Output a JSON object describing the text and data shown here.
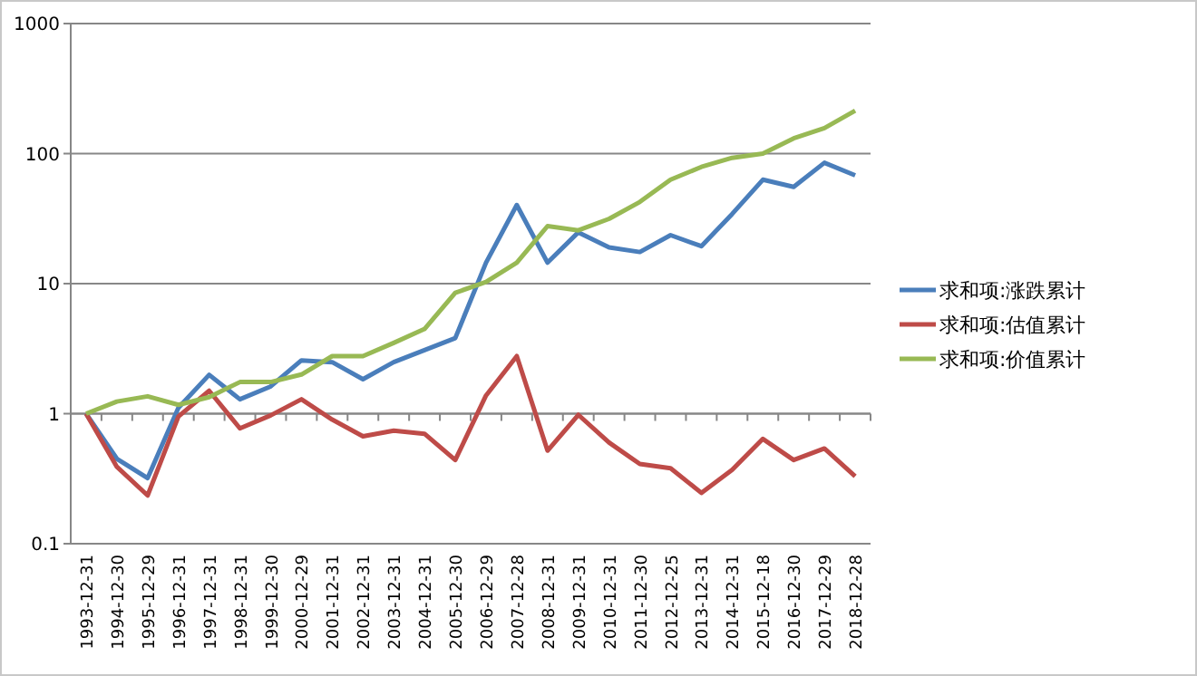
{
  "chart_data": {
    "type": "line",
    "log": "y",
    "ylim": [
      0.1,
      1000
    ],
    "yticks": [
      0.1,
      1,
      10,
      100,
      1000
    ],
    "grid": "y",
    "legend": "right",
    "categories": [
      "1993-12-31",
      "1994-12-30",
      "1995-12-29",
      "1996-12-31",
      "1997-12-31",
      "1998-12-31",
      "1999-12-30",
      "2000-12-29",
      "2001-12-31",
      "2002-12-31",
      "2003-12-31",
      "2004-12-31",
      "2005-12-30",
      "2006-12-29",
      "2007-12-28",
      "2008-12-31",
      "2009-12-31",
      "2010-12-31",
      "2011-12-30",
      "2012-12-25",
      "2013-12-31",
      "2014-12-31",
      "2015-12-18",
      "2016-12-30",
      "2017-12-29",
      "2018-12-28"
    ],
    "series": [
      {
        "name": "求和项:涨跌累计",
        "color": "#4a7ebb",
        "values": [
          1,
          0.45,
          0.32,
          1.11,
          1.99,
          1.29,
          1.62,
          2.57,
          2.49,
          1.84,
          2.49,
          3.08,
          3.81,
          14.5,
          40.2,
          14.5,
          24.8,
          19,
          17.5,
          23.6,
          19.4,
          34.3,
          63,
          55.5,
          85,
          68
        ]
      },
      {
        "name": "求和项:估值累计",
        "color": "#be4b48",
        "values": [
          1,
          0.39,
          0.235,
          0.95,
          1.5,
          0.77,
          0.97,
          1.29,
          0.9,
          0.67,
          0.74,
          0.7,
          0.44,
          1.38,
          2.77,
          0.52,
          0.98,
          0.6,
          0.41,
          0.38,
          0.246,
          0.37,
          0.64,
          0.44,
          0.54,
          0.33
        ]
      },
      {
        "name": "求和项:价值累计",
        "color": "#98b954",
        "values": [
          1,
          1.24,
          1.36,
          1.17,
          1.34,
          1.75,
          1.75,
          2.0,
          2.77,
          2.77,
          3.5,
          4.48,
          8.5,
          10.3,
          14.5,
          27.7,
          25.7,
          31.5,
          42.5,
          63,
          79,
          92.8,
          100,
          131,
          157,
          214
        ]
      }
    ]
  }
}
